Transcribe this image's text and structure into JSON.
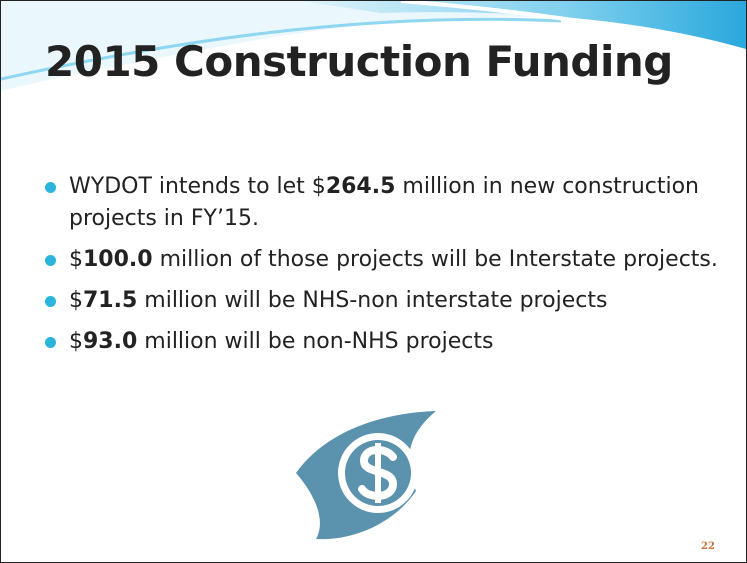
{
  "title": "2015 Construction Funding",
  "bullets": [
    {
      "before": "WYDOT intends to let $",
      "amount": "264.5",
      "after": " million in new construction projects in FY’15."
    },
    {
      "before": "$",
      "amount": "100.0",
      "after": " million of those projects will be Interstate projects."
    },
    {
      "before": "$",
      "amount": "71.5",
      "after": " million will be NHS-non interstate projects"
    },
    {
      "before": "$",
      "amount": "93.0",
      "after": " million will be non-NHS projects"
    }
  ],
  "page_number": "22"
}
